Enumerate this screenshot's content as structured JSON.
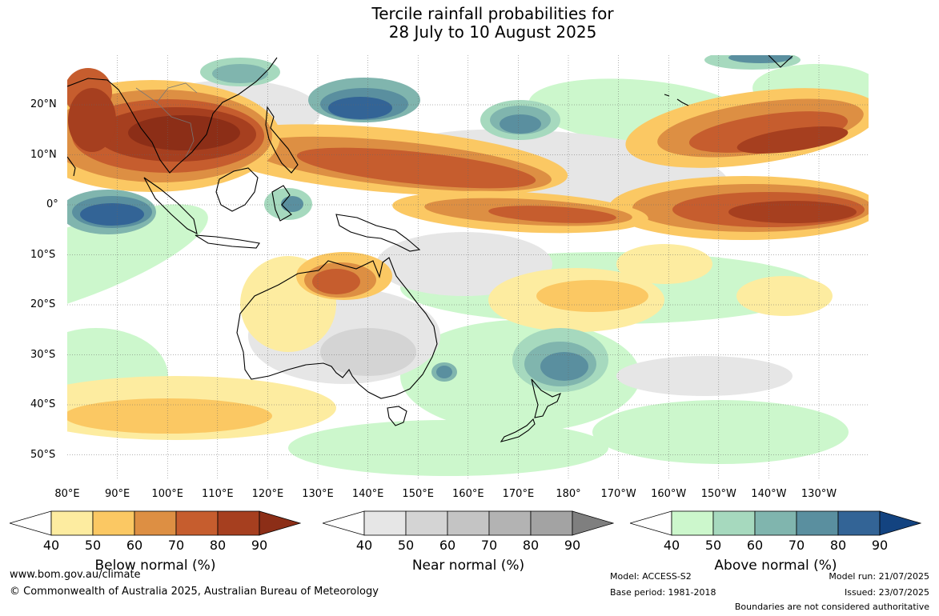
{
  "title": {
    "line1": "Tercile rainfall probabilities for",
    "line2": "28 July to 10 August 2025"
  },
  "map": {
    "lat_labels": [
      "20°N",
      "10°N",
      "0°",
      "10°S",
      "20°S",
      "30°S",
      "40°S",
      "50°S"
    ],
    "lon_labels": [
      "80°E",
      "90°E",
      "100°E",
      "110°E",
      "120°E",
      "130°E",
      "140°E",
      "150°E",
      "160°E",
      "170°E",
      "180°",
      "170°W",
      "160°W",
      "150°W",
      "140°W",
      "130°W"
    ],
    "colors": {
      "below": [
        "#fdeca0",
        "#fbc863",
        "#dd8f43",
        "#c65d2e",
        "#a63f1f",
        "#8c2e17"
      ],
      "near": [
        "#e6e6e6",
        "#d4d4d4",
        "#c4c4c4",
        "#b3b3b3",
        "#a3a3a3",
        "#7f7f7f"
      ],
      "above": [
        "#ccf7cc",
        "#a6d9be",
        "#80b5ae",
        "#5a8f9f",
        "#336496",
        "#134380"
      ]
    }
  },
  "legends": [
    {
      "key": "below",
      "title": "Below normal (%)",
      "ticks": [
        "40",
        "50",
        "60",
        "70",
        "80",
        "90"
      ],
      "colors": [
        "#fdeca0",
        "#fbc863",
        "#dd8f43",
        "#c65d2e",
        "#a63f1f",
        "#8c2e17"
      ]
    },
    {
      "key": "near",
      "title": "Near normal (%)",
      "ticks": [
        "40",
        "50",
        "60",
        "70",
        "80",
        "90"
      ],
      "colors": [
        "#e6e6e6",
        "#d4d4d4",
        "#c4c4c4",
        "#b3b3b3",
        "#a3a3a3",
        "#7f7f7f"
      ]
    },
    {
      "key": "above",
      "title": "Above normal (%)",
      "ticks": [
        "40",
        "50",
        "60",
        "70",
        "80",
        "90"
      ],
      "colors": [
        "#ccf7cc",
        "#a6d9be",
        "#80b5ae",
        "#5a8f9f",
        "#336496",
        "#134380"
      ]
    }
  ],
  "footer": {
    "website": "www.bom.gov.au/climate",
    "copyright": "© Commonwealth of Australia 2025, Australian Bureau of Meteorology",
    "model": "Model: ACCESS-S2",
    "base_period": "Base period: 1981-2018",
    "model_run": "Model run: 21/07/2025",
    "issued": "Issued: 23/07/2025",
    "boundaries": "Boundaries are not considered authoritative"
  }
}
